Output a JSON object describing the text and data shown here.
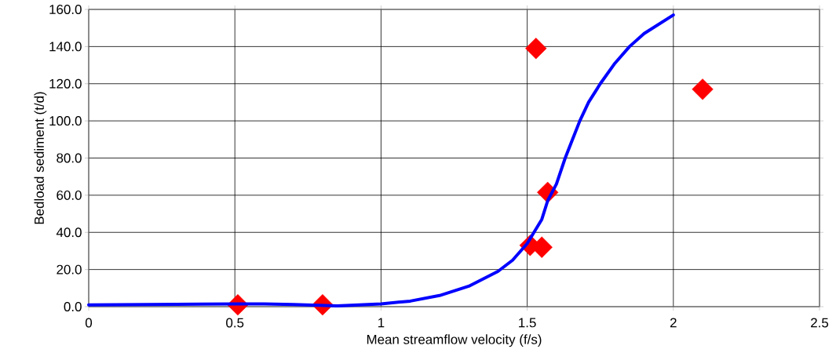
{
  "chart_data": {
    "type": "scatter",
    "xlabel": "Mean streamflow velocity (f/s)",
    "ylabel": "Bedload sediment (t/d)",
    "xlim": [
      0,
      2.5
    ],
    "xticks": [
      0,
      0.5,
      1,
      1.5,
      2,
      2.5
    ],
    "ylim": [
      0,
      160
    ],
    "yticks": [
      {
        "value": 0,
        "label": "0.0"
      },
      {
        "value": 20,
        "label": "20.0"
      },
      {
        "value": 40,
        "label": "40.0"
      },
      {
        "value": 60,
        "label": "60.0"
      },
      {
        "value": 80,
        "label": "80.0"
      },
      {
        "value": 100,
        "label": "100.0"
      },
      {
        "value": 120,
        "label": "120.0"
      },
      {
        "value": 140,
        "label": "140.0"
      },
      {
        "value": 160,
        "label": "160.0"
      }
    ],
    "grid": true,
    "series": [
      {
        "color": "#ff0000",
        "marker": "diamond",
        "x": [
          0.51,
          0.8,
          1.53,
          1.51,
          1.55,
          1.57,
          2.1
        ],
        "values": [
          1,
          1,
          139,
          33,
          32,
          61.5,
          117
        ]
      },
      {
        "type": "line",
        "color": "#0000ff",
        "marker": "none",
        "line_style": "solid",
        "x": [
          0,
          0.3,
          0.5,
          0.6,
          0.7,
          0.85,
          1,
          1.1,
          1.2,
          1.3,
          1.4,
          1.45,
          1.5,
          1.55,
          1.57,
          1.6,
          1.63,
          1.65,
          1.68,
          1.71,
          1.75,
          1.8,
          1.85,
          1.9,
          2.0
        ],
        "values": [
          1,
          1.3,
          1.5,
          1.5,
          1.2,
          0.4,
          1.5,
          3,
          6,
          11,
          19,
          25,
          34,
          47,
          57,
          66,
          80,
          88,
          100,
          110,
          120,
          131,
          140,
          147,
          157
        ]
      }
    ]
  }
}
